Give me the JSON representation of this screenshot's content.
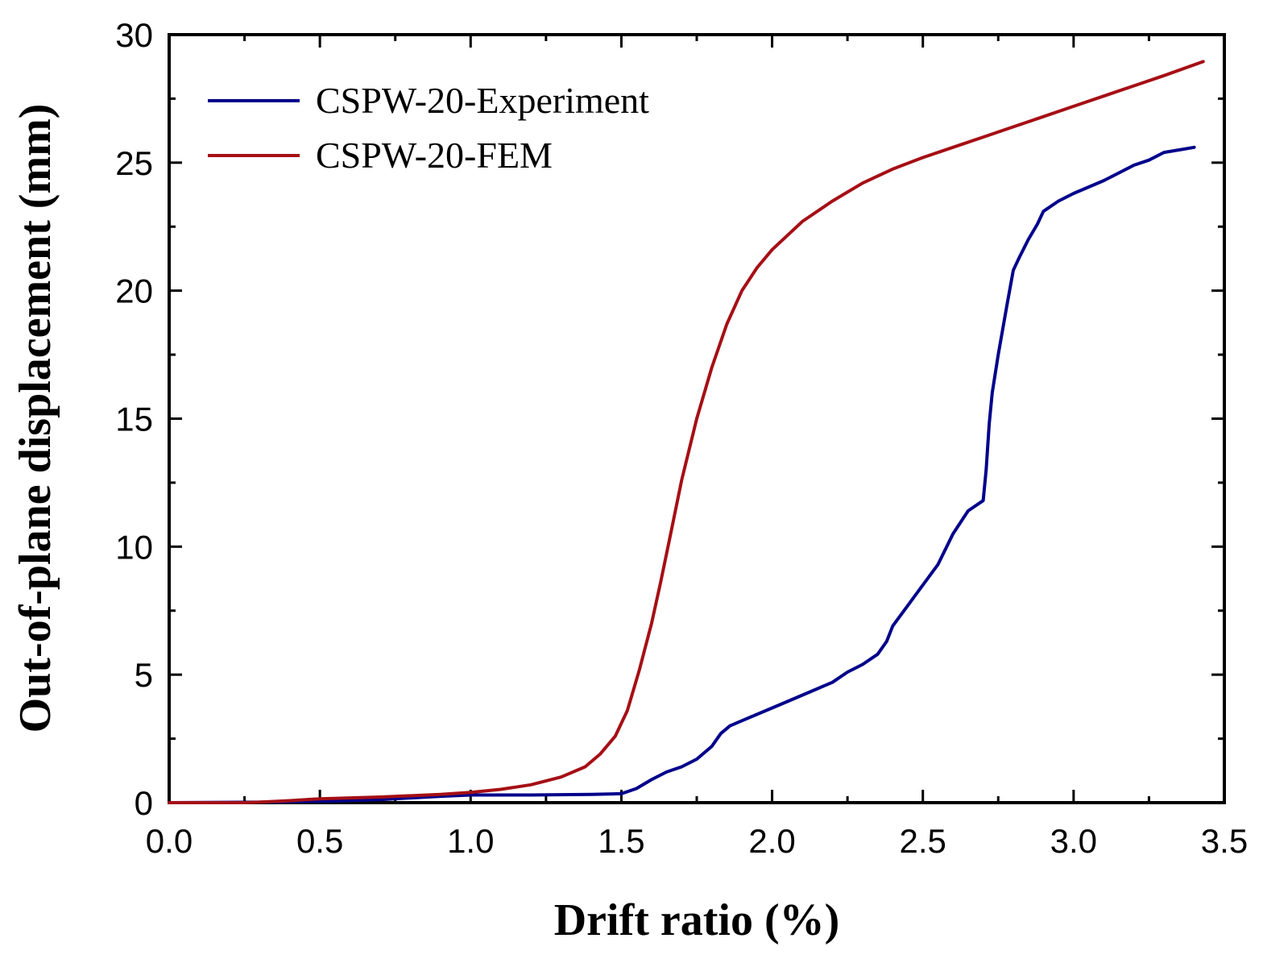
{
  "chart_data": {
    "type": "line",
    "title": "",
    "xlabel": "Drift ratio (%)",
    "ylabel": "Out-of-plane displacement (mm)",
    "xlim": [
      0,
      3.5
    ],
    "ylim": [
      0,
      30
    ],
    "grid": false,
    "legend_position": "top-left",
    "x_ticks": [
      0.0,
      0.5,
      1.0,
      1.5,
      2.0,
      2.5,
      3.0,
      3.5
    ],
    "x_tick_labels": [
      "0.0",
      "0.5",
      "1.0",
      "1.5",
      "2.0",
      "2.5",
      "3.0",
      "3.5"
    ],
    "y_ticks": [
      0,
      5,
      10,
      15,
      20,
      25,
      30
    ],
    "y_tick_labels": [
      "0",
      "5",
      "10",
      "15",
      "20",
      "25",
      "30"
    ],
    "series": [
      {
        "name": "CSPW-20-Experiment",
        "color": "#00008b",
        "x": [
          0.0,
          0.3,
          0.5,
          0.7,
          0.9,
          1.0,
          1.2,
          1.4,
          1.5,
          1.55,
          1.6,
          1.65,
          1.7,
          1.75,
          1.8,
          1.83,
          1.86,
          1.9,
          2.0,
          2.1,
          2.2,
          2.25,
          2.3,
          2.35,
          2.38,
          2.4,
          2.45,
          2.5,
          2.55,
          2.6,
          2.65,
          2.7,
          2.71,
          2.72,
          2.73,
          2.75,
          2.78,
          2.8,
          2.82,
          2.85,
          2.88,
          2.9,
          2.95,
          3.0,
          3.1,
          3.2,
          3.25,
          3.3,
          3.35,
          3.4
        ],
        "y": [
          0.0,
          0.02,
          0.05,
          0.12,
          0.25,
          0.3,
          0.3,
          0.32,
          0.35,
          0.55,
          0.9,
          1.2,
          1.4,
          1.7,
          2.2,
          2.7,
          3.0,
          3.2,
          3.7,
          4.2,
          4.7,
          5.1,
          5.4,
          5.8,
          6.3,
          6.9,
          7.7,
          8.5,
          9.3,
          10.5,
          11.4,
          11.8,
          13.0,
          14.8,
          16.0,
          17.5,
          19.5,
          20.8,
          21.3,
          22.0,
          22.6,
          23.1,
          23.5,
          23.8,
          24.3,
          24.9,
          25.1,
          25.4,
          25.5,
          25.6
        ]
      },
      {
        "name": "CSPW-20-FEM",
        "color": "#a50f15",
        "x": [
          0.0,
          0.25,
          0.3,
          0.4,
          0.5,
          0.7,
          0.9,
          1.0,
          1.1,
          1.2,
          1.3,
          1.38,
          1.43,
          1.48,
          1.52,
          1.56,
          1.6,
          1.63,
          1.66,
          1.7,
          1.75,
          1.8,
          1.85,
          1.9,
          1.95,
          2.0,
          2.1,
          2.2,
          2.3,
          2.4,
          2.5,
          2.6,
          2.7,
          2.8,
          2.9,
          3.0,
          3.1,
          3.2,
          3.3,
          3.43
        ],
        "y": [
          0.0,
          0.0,
          0.02,
          0.08,
          0.15,
          0.22,
          0.32,
          0.4,
          0.52,
          0.7,
          1.0,
          1.4,
          1.9,
          2.6,
          3.6,
          5.2,
          7.0,
          8.6,
          10.3,
          12.6,
          15.0,
          17.0,
          18.7,
          20.0,
          20.9,
          21.6,
          22.7,
          23.5,
          24.2,
          24.75,
          25.2,
          25.6,
          26.0,
          26.4,
          26.8,
          27.2,
          27.6,
          28.0,
          28.4,
          28.95
        ]
      }
    ]
  }
}
